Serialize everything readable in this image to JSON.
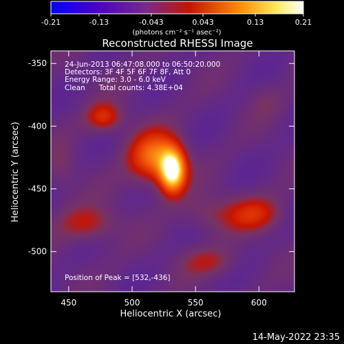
{
  "chart_data": {
    "type": "heatmap",
    "title": "Reconstructed RHESSI Image",
    "xlabel": "Heliocentric X (arcsec)",
    "ylabel": "Heliocentric Y (arcsec)",
    "xlim": [
      436,
      628
    ],
    "ylim": [
      -532,
      -340
    ],
    "x_ticks": [
      450,
      500,
      550,
      600
    ],
    "y_ticks": [
      -350,
      -400,
      -450,
      -500
    ],
    "colorscale": {
      "min": -0.21,
      "max": 0.21,
      "ticks": [
        "-0.21",
        "-0.13",
        "-0.043",
        "0.043",
        "0.13",
        "0.21"
      ],
      "units_text": "(photons cm⁻² s⁻¹ asec⁻²)",
      "colors": [
        "#0000ff",
        "#6a008a",
        "#7a2a8a",
        "#c81400",
        "#ff8c00",
        "#ffff80",
        "#ffffff"
      ]
    },
    "info_lines": [
      "24-Jun-2013 06:47:08.000 to 06:50:20.000",
      "Detectors: 3F 4F 5F 6F 7F 8F, Att 0",
      "Energy Range: 3.0 - 6.0 keV",
      "Clean      Total counts: 4.38E+04"
    ],
    "peak_text": "Position of Peak = [532,-436]",
    "peak": {
      "x": 532,
      "y": -436,
      "value": 0.21
    },
    "sources": [
      {
        "x": 532,
        "y": -436,
        "amp": 0.21,
        "sx": 7,
        "sy": 12
      },
      {
        "x": 518,
        "y": -425,
        "amp": 0.13,
        "sx": 14,
        "sy": 14
      },
      {
        "x": 478,
        "y": -393,
        "amp": 0.08,
        "sx": 10,
        "sy": 8
      },
      {
        "x": 596,
        "y": -470,
        "amp": 0.07,
        "sx": 16,
        "sy": 10
      },
      {
        "x": 465,
        "y": -478,
        "amp": 0.06,
        "sx": 16,
        "sy": 10
      },
      {
        "x": 560,
        "y": -508,
        "amp": 0.045,
        "sx": 16,
        "sy": 8
      },
      {
        "x": 560,
        "y": -470,
        "amp": 0.035,
        "sx": 14,
        "sy": 10
      },
      {
        "x": 445,
        "y": -435,
        "amp": 0.025,
        "sx": 8,
        "sy": 14
      },
      {
        "x": 605,
        "y": -380,
        "amp": 0.02,
        "sx": 10,
        "sy": 10
      }
    ]
  },
  "footer": {
    "timestamp": "14-May-2022 23:35"
  }
}
